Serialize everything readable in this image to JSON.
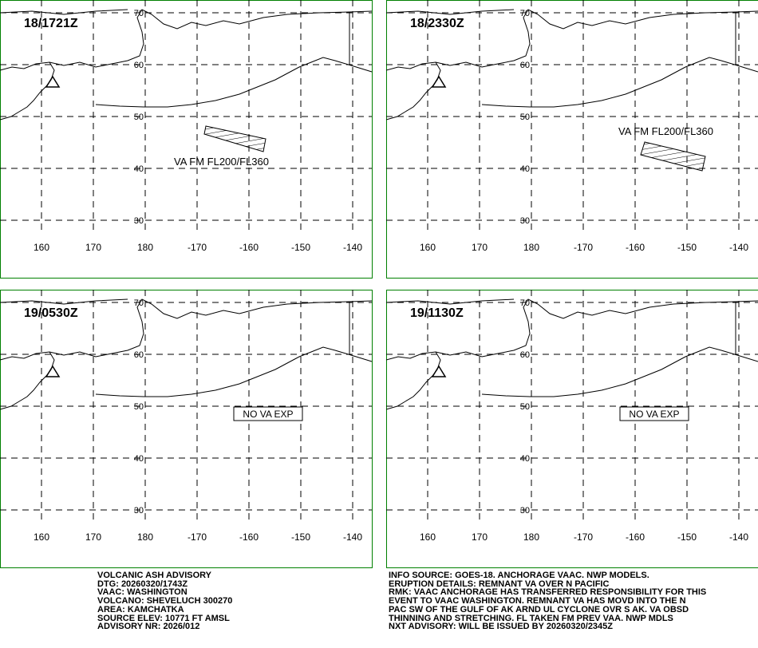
{
  "grid": {
    "lon_labels": [
      "160",
      "170",
      "180",
      "-170",
      "-160",
      "-150",
      "-140"
    ],
    "lat_labels": [
      "70",
      "60",
      "50",
      "40",
      "30"
    ]
  },
  "panels": [
    {
      "time": "18/1721Z",
      "annotation": "VA FM FL200/FL360"
    },
    {
      "time": "18/2330Z",
      "annotation": "VA FM FL200/FL360"
    },
    {
      "time": "19/0530Z",
      "annotation": "NO VA EXP"
    },
    {
      "time": "19/1130Z",
      "annotation": "NO VA EXP"
    }
  ],
  "advisory_left": [
    "VOLCANIC ASH ADVISORY",
    "DTG: 20260320/1743Z",
    "VAAC: WASHINGTON",
    "VOLCANO: SHEVELUCH 300270",
    "AREA: KAMCHATKA",
    "SOURCE ELEV: 10771 FT AMSL",
    "ADVISORY NR: 2026/012"
  ],
  "advisory_right": [
    "INFO SOURCE: GOES-18. ANCHORAGE VAAC. NWP MODELS.",
    "ERUPTION DETAILS: REMNANT VA OVER N PACIFIC",
    "RMK: VAAC ANCHORAGE HAS TRANSFERRED RESPONSIBILITY FOR THIS",
    "EVENT TO VAAC WASHINGTON. REMNANT VA HAS MOVD INTO THE N",
    "PAC SW OF THE GULF OF AK ARND UL CYCLONE OVR S AK. VA OBSD",
    "THINNING AND STRETCHING. FL TAKEN FM PREV VAA. NWP MDLS",
    "NXT ADVISORY: WILL BE ISSUED BY 20260320/2345Z"
  ]
}
